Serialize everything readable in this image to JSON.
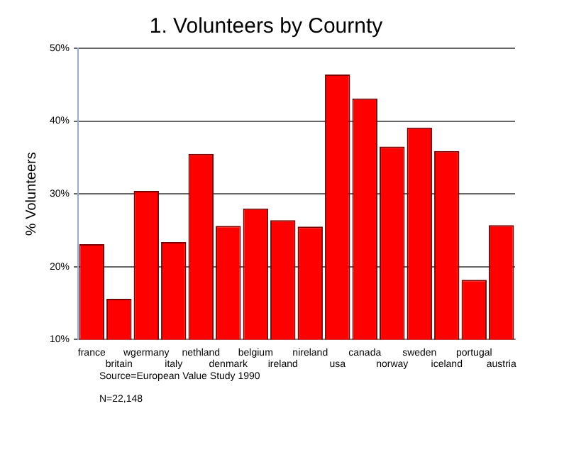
{
  "chart_data": {
    "type": "bar",
    "title": "1. Volunteers by Cournty",
    "ylabel": "% Volunteers",
    "categories": [
      "france",
      "britain",
      "wgermany",
      "italy",
      "nethland",
      "denmark",
      "belgium",
      "ireland",
      "nireland",
      "usa",
      "canada",
      "norway",
      "sweden",
      "iceland",
      "portugal",
      "austria"
    ],
    "values": [
      23.1,
      15.6,
      30.4,
      23.4,
      35.5,
      25.6,
      28.0,
      26.4,
      25.5,
      46.4,
      43.1,
      36.5,
      39.1,
      35.9,
      18.2,
      25.7
    ],
    "color": "#ff0000",
    "ylim": [
      10,
      50
    ],
    "yticks": [
      {
        "value": 10,
        "label": "10%"
      },
      {
        "value": 20,
        "label": "20%"
      },
      {
        "value": 30,
        "label": "30%"
      },
      {
        "value": 40,
        "label": "40%"
      },
      {
        "value": 50,
        "label": "50%"
      }
    ],
    "grid": "y",
    "legend": false,
    "annotations": [
      "Source=European Value Study 1990",
      "N=22,148"
    ]
  }
}
